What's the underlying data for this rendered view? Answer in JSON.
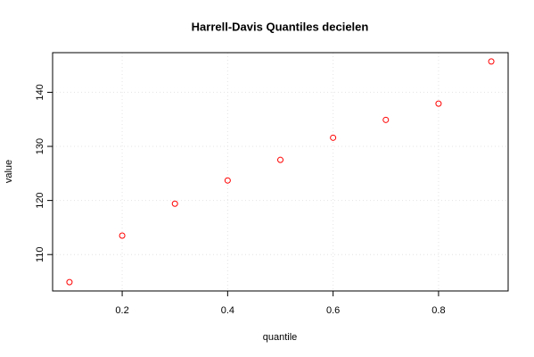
{
  "chart_data": {
    "type": "scatter",
    "title": "Harrell-Davis Quantiles decielen",
    "x_label": "quantile",
    "y_label": "value",
    "x": [
      0.1,
      0.2,
      0.3,
      0.4,
      0.5,
      0.6,
      0.7,
      0.8,
      0.9
    ],
    "series": [
      {
        "name": "value",
        "color": "#ff0000",
        "values": [
          104.9,
          113.5,
          119.4,
          123.7,
          127.5,
          131.6,
          134.9,
          137.9,
          145.7
        ]
      }
    ],
    "xlim": [
      0.068,
      0.932
    ],
    "ylim": [
      103.27,
      147.33
    ],
    "xticks": [
      0.2,
      0.4,
      0.6,
      0.8
    ],
    "yticks": [
      110,
      120,
      130,
      140
    ],
    "grid": true
  }
}
